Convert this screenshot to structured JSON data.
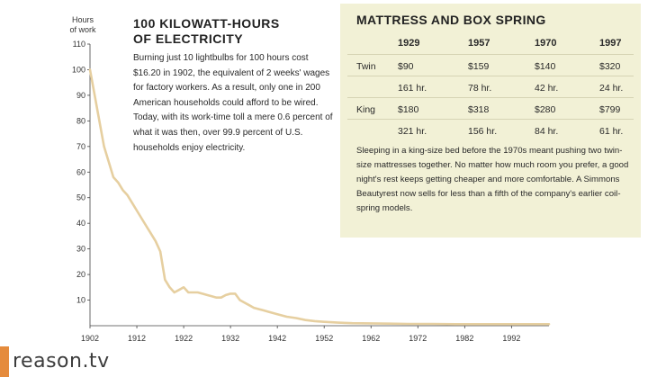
{
  "story": {
    "title": "100 KILOWATT-HOURS\nOF ELECTRICITY",
    "body": "Burning just 10 lightbulbs for 100 hours cost $16.20 in 1902, the equivalent of 2 weeks' wages for factory workers. As a result, only one in 200 American households could afford to be wired. Today, with its work-time toll a mere 0.6 percent of what it was then, over 99.9 percent of U.S. households enjoy electricity."
  },
  "mattress": {
    "title": "MATTRESS AND BOX SPRING",
    "years": [
      "1929",
      "1957",
      "1970",
      "1997"
    ],
    "rows": [
      {
        "label": "Twin",
        "prices": [
          "$90",
          "$159",
          "$140",
          "$320"
        ],
        "hours": [
          "161 hr.",
          "78 hr.",
          "42 hr.",
          "24 hr."
        ]
      },
      {
        "label": "King",
        "prices": [
          "$180",
          "$318",
          "$280",
          "$799"
        ],
        "hours": [
          "321 hr.",
          "156 hr.",
          "84 hr.",
          "61 hr."
        ]
      }
    ],
    "note": "Sleeping in a king-size bed before the 1970s meant pushing two twin-size mattresses together. No matter how much room you prefer, a good night's rest keeps getting cheaper and more comfortable. A Simmons Beautyrest now sells for less than a fifth of the company's earlier coil-spring models."
  },
  "watermark": {
    "text": "reason.tv",
    "accent": "#e58b3c"
  },
  "chart_data": {
    "type": "line",
    "ylabel": "Hours\nof work",
    "xlim": [
      1902,
      2000
    ],
    "ylim": [
      0,
      110
    ],
    "yticks": [
      10,
      20,
      30,
      40,
      50,
      60,
      70,
      80,
      90,
      100,
      110
    ],
    "xticks": [
      1902,
      1912,
      1922,
      1932,
      1942,
      1952,
      1962,
      1972,
      1982,
      1992
    ],
    "line_color": "#e6cfa0",
    "grid": false,
    "series": [
      {
        "x": [
          1902,
          1903,
          1904,
          1905,
          1906,
          1907,
          1908,
          1909,
          1910,
          1911,
          1912,
          1913,
          1914,
          1915,
          1916,
          1917,
          1918,
          1919,
          1920,
          1921,
          1922,
          1923,
          1924,
          1925,
          1926,
          1927,
          1928,
          1929,
          1930,
          1931,
          1932,
          1933,
          1934,
          1935,
          1936,
          1937,
          1938,
          1939,
          1940,
          1942,
          1944,
          1946,
          1948,
          1950,
          1952,
          1955,
          1958,
          1962,
          1966,
          1970,
          1975,
          1980,
          1985,
          1990,
          1995,
          2000
        ],
        "y": [
          100,
          90,
          80,
          70,
          64,
          58,
          56,
          53,
          51,
          48,
          45,
          42,
          39,
          36,
          33,
          29,
          18,
          15,
          13,
          14,
          15,
          13,
          13,
          13,
          12.5,
          12,
          11.5,
          11,
          11,
          12,
          12.5,
          12.5,
          10,
          9,
          8,
          7,
          6.5,
          6,
          5.5,
          4.5,
          3.5,
          3,
          2.2,
          1.8,
          1.5,
          1.2,
          1.0,
          0.9,
          0.8,
          0.7,
          0.7,
          0.6,
          0.6,
          0.6,
          0.6,
          0.6
        ]
      }
    ]
  }
}
